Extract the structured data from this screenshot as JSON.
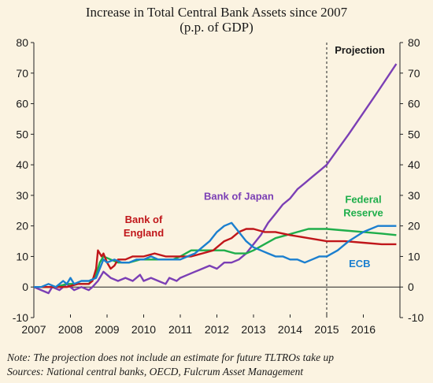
{
  "chart_data": {
    "type": "line",
    "title": "Increase  in Total Central Bank Assets since  2007",
    "subtitle": "(p.p. of GDP)",
    "y_ticks": [
      "80",
      "70",
      "60",
      "50",
      "40",
      "30",
      "20",
      "10",
      "0",
      "-10"
    ],
    "x_ticks": [
      "2007",
      "2008",
      "2009",
      "2010",
      "2011",
      "2012",
      "2013",
      "2014",
      "2015",
      "2016"
    ],
    "ylim": [
      -10,
      80
    ],
    "xlim": [
      2007,
      2017
    ],
    "projection_start": 2015,
    "projection_label": "Projection",
    "grid": false,
    "series": [
      {
        "name": "Bank of Japan",
        "label_lines": [
          "Bank of Japan"
        ],
        "color": "#7b3fb5",
        "points": [
          [
            2007.0,
            0
          ],
          [
            2007.2,
            -1
          ],
          [
            2007.4,
            -2
          ],
          [
            2007.5,
            0
          ],
          [
            2007.7,
            -1
          ],
          [
            2007.9,
            1
          ],
          [
            2008.1,
            -1
          ],
          [
            2008.3,
            0
          ],
          [
            2008.5,
            -1
          ],
          [
            2008.6,
            0
          ],
          [
            2008.75,
            2
          ],
          [
            2008.9,
            5
          ],
          [
            2009.1,
            3
          ],
          [
            2009.3,
            2
          ],
          [
            2009.5,
            3
          ],
          [
            2009.7,
            2
          ],
          [
            2009.9,
            4
          ],
          [
            2010.0,
            2
          ],
          [
            2010.2,
            3
          ],
          [
            2010.4,
            2
          ],
          [
            2010.6,
            1
          ],
          [
            2010.7,
            3
          ],
          [
            2010.9,
            2
          ],
          [
            2011.0,
            3
          ],
          [
            2011.2,
            4
          ],
          [
            2011.4,
            5
          ],
          [
            2011.6,
            6
          ],
          [
            2011.8,
            7
          ],
          [
            2012.0,
            6
          ],
          [
            2012.2,
            8
          ],
          [
            2012.4,
            8
          ],
          [
            2012.6,
            9
          ],
          [
            2012.8,
            11
          ],
          [
            2013.0,
            14
          ],
          [
            2013.2,
            17
          ],
          [
            2013.4,
            21
          ],
          [
            2013.6,
            24
          ],
          [
            2013.8,
            27
          ],
          [
            2014.0,
            29
          ],
          [
            2014.2,
            32
          ],
          [
            2014.4,
            34
          ],
          [
            2014.6,
            36
          ],
          [
            2014.8,
            38
          ],
          [
            2015.0,
            40
          ],
          [
            2015.3,
            45
          ],
          [
            2015.6,
            50
          ],
          [
            2016.0,
            57
          ],
          [
            2016.4,
            64
          ],
          [
            2016.9,
            73
          ]
        ]
      },
      {
        "name": "Federal Reserve",
        "label_lines": [
          "Federal",
          "Reserve"
        ],
        "color": "#1fae4b",
        "points": [
          [
            2007.0,
            0
          ],
          [
            2007.3,
            0
          ],
          [
            2007.6,
            0
          ],
          [
            2007.9,
            1
          ],
          [
            2008.2,
            1
          ],
          [
            2008.5,
            1
          ],
          [
            2008.7,
            4
          ],
          [
            2008.8,
            8
          ],
          [
            2008.9,
            10
          ],
          [
            2009.1,
            9
          ],
          [
            2009.3,
            8
          ],
          [
            2009.6,
            8
          ],
          [
            2009.9,
            9
          ],
          [
            2010.2,
            9
          ],
          [
            2010.5,
            9
          ],
          [
            2010.8,
            9
          ],
          [
            2011.0,
            10
          ],
          [
            2011.3,
            12
          ],
          [
            2011.6,
            12
          ],
          [
            2011.9,
            12
          ],
          [
            2012.2,
            12
          ],
          [
            2012.5,
            11
          ],
          [
            2012.8,
            11
          ],
          [
            2013.0,
            12
          ],
          [
            2013.3,
            14
          ],
          [
            2013.6,
            16
          ],
          [
            2013.9,
            17
          ],
          [
            2014.2,
            18
          ],
          [
            2014.5,
            19
          ],
          [
            2014.8,
            19
          ],
          [
            2015.0,
            19
          ],
          [
            2015.5,
            18.5
          ],
          [
            2016.0,
            18
          ],
          [
            2016.5,
            17.5
          ],
          [
            2016.9,
            17
          ]
        ]
      },
      {
        "name": "Bank of England",
        "label_lines": [
          "Bank of",
          "England"
        ],
        "color": "#c0161a",
        "points": [
          [
            2007.0,
            0
          ],
          [
            2007.3,
            0
          ],
          [
            2007.6,
            0
          ],
          [
            2007.9,
            0
          ],
          [
            2008.2,
            1
          ],
          [
            2008.5,
            1
          ],
          [
            2008.6,
            2
          ],
          [
            2008.7,
            6
          ],
          [
            2008.75,
            12
          ],
          [
            2008.85,
            10
          ],
          [
            2008.9,
            11
          ],
          [
            2009.0,
            8
          ],
          [
            2009.1,
            6
          ],
          [
            2009.2,
            7
          ],
          [
            2009.3,
            9
          ],
          [
            2009.5,
            9
          ],
          [
            2009.7,
            10
          ],
          [
            2010.0,
            10
          ],
          [
            2010.3,
            11
          ],
          [
            2010.6,
            10
          ],
          [
            2011.0,
            10
          ],
          [
            2011.3,
            10
          ],
          [
            2011.6,
            11
          ],
          [
            2011.9,
            12
          ],
          [
            2012.0,
            13
          ],
          [
            2012.2,
            15
          ],
          [
            2012.4,
            16
          ],
          [
            2012.6,
            18
          ],
          [
            2012.8,
            19
          ],
          [
            2013.0,
            19
          ],
          [
            2013.3,
            18
          ],
          [
            2013.6,
            18
          ],
          [
            2014.0,
            17
          ],
          [
            2014.5,
            16
          ],
          [
            2015.0,
            15
          ],
          [
            2015.5,
            15
          ],
          [
            2016.0,
            14.5
          ],
          [
            2016.5,
            14
          ],
          [
            2016.9,
            14
          ]
        ]
      },
      {
        "name": "ECB",
        "label_lines": [
          "ECB"
        ],
        "color": "#1b7fcf",
        "points": [
          [
            2007.0,
            0
          ],
          [
            2007.2,
            0
          ],
          [
            2007.4,
            1
          ],
          [
            2007.6,
            0
          ],
          [
            2007.8,
            2
          ],
          [
            2007.9,
            1
          ],
          [
            2008.0,
            3
          ],
          [
            2008.1,
            1
          ],
          [
            2008.3,
            2
          ],
          [
            2008.5,
            2
          ],
          [
            2008.7,
            3
          ],
          [
            2008.8,
            6
          ],
          [
            2008.9,
            9
          ],
          [
            2009.0,
            8
          ],
          [
            2009.2,
            9
          ],
          [
            2009.4,
            8
          ],
          [
            2009.6,
            8
          ],
          [
            2009.8,
            9
          ],
          [
            2010.0,
            9
          ],
          [
            2010.2,
            10
          ],
          [
            2010.4,
            9
          ],
          [
            2010.6,
            9
          ],
          [
            2010.8,
            9
          ],
          [
            2011.0,
            9
          ],
          [
            2011.2,
            10
          ],
          [
            2011.4,
            11
          ],
          [
            2011.6,
            13
          ],
          [
            2011.8,
            15
          ],
          [
            2012.0,
            18
          ],
          [
            2012.2,
            20
          ],
          [
            2012.4,
            21
          ],
          [
            2012.6,
            18
          ],
          [
            2012.8,
            15
          ],
          [
            2013.0,
            13
          ],
          [
            2013.2,
            12
          ],
          [
            2013.4,
            11
          ],
          [
            2013.6,
            10
          ],
          [
            2013.8,
            10
          ],
          [
            2014.0,
            9
          ],
          [
            2014.2,
            9
          ],
          [
            2014.4,
            8
          ],
          [
            2014.6,
            9
          ],
          [
            2014.8,
            10
          ],
          [
            2015.0,
            10
          ],
          [
            2015.3,
            12
          ],
          [
            2015.6,
            15
          ],
          [
            2016.0,
            18
          ],
          [
            2016.4,
            20
          ],
          [
            2016.9,
            20
          ]
        ]
      }
    ]
  },
  "notes": {
    "line1": "Note: The projection does not include  an estimate for future TLTROs take up",
    "line2": "Sources: National central banks, OECD,  Fulcrum Asset Management"
  }
}
